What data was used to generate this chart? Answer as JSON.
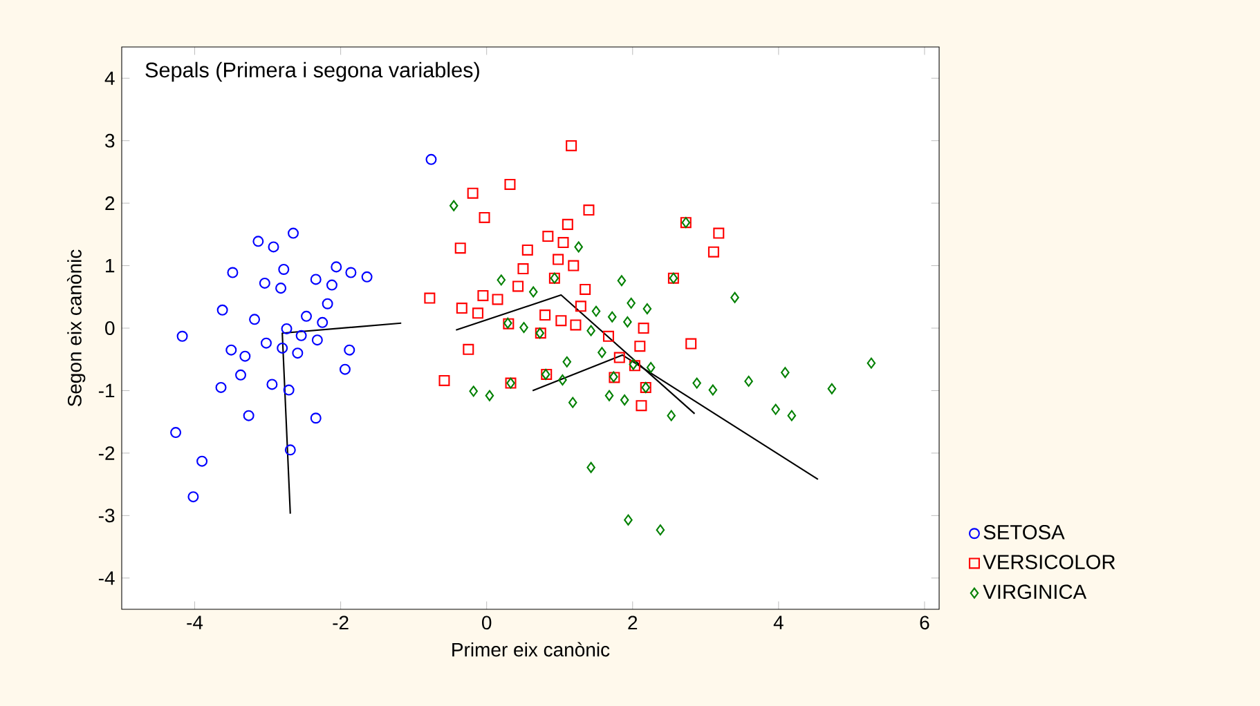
{
  "chart_data": {
    "type": "scatter",
    "title": "Sepals (Primera i segona variables)",
    "xlabel": "Primer eix canònic",
    "ylabel": "Segon eix canònic",
    "xlim": [
      -5,
      6.2
    ],
    "ylim": [
      -4.5,
      4.5
    ],
    "xticks": [
      -4,
      -2,
      0,
      2,
      4,
      6
    ],
    "yticks": [
      -4,
      -3,
      -2,
      -1,
      0,
      1,
      2,
      3,
      4
    ],
    "grid": false,
    "legend": "bottom right",
    "series": [
      {
        "name": "SETOSA",
        "color": "#0000ff",
        "marker": "circle",
        "x": [
          -0.76,
          -2.65,
          -3.13,
          -2.92,
          -3.48,
          -2.78,
          -3.04,
          -2.82,
          -2.06,
          -1.86,
          -1.64,
          -2.34,
          -2.12,
          -2.18,
          -3.62,
          -3.18,
          -2.47,
          -2.25,
          -4.17,
          -2.74,
          -2.54,
          -2.32,
          -3.02,
          -2.8,
          -2.59,
          -3.5,
          -3.31,
          -1.88,
          -1.94,
          -3.37,
          -3.64,
          -2.94,
          -2.71,
          -3.26,
          -2.34,
          -4.26,
          -2.69,
          -3.9,
          -4.02
        ],
        "values": [
          2.7,
          1.52,
          1.39,
          1.3,
          0.89,
          0.94,
          0.72,
          0.64,
          0.98,
          0.89,
          0.82,
          0.78,
          0.69,
          0.39,
          0.29,
          0.14,
          0.19,
          0.09,
          -0.13,
          -0.01,
          -0.12,
          -0.19,
          -0.24,
          -0.32,
          -0.4,
          -0.35,
          -0.45,
          -0.35,
          -0.66,
          -0.75,
          -0.95,
          -0.9,
          -0.99,
          -1.4,
          -1.44,
          -1.67,
          -1.95,
          -2.13,
          -2.7
        ]
      },
      {
        "name": "VERSICOLOR",
        "color": "#ff0000",
        "marker": "square",
        "x": [
          1.16,
          0.32,
          -0.19,
          -0.03,
          1.4,
          1.11,
          -0.36,
          0.84,
          1.05,
          0.56,
          0.98,
          1.19,
          0.5,
          0.93,
          0.43,
          -0.78,
          -0.05,
          0.15,
          1.35,
          -0.34,
          -0.12,
          1.29,
          0.8,
          1.02,
          1.22,
          0.3,
          0.74,
          1.67,
          1.82,
          -0.25,
          -0.58,
          0.33,
          0.82,
          1.75,
          2.73,
          3.18,
          3.11,
          2.56,
          2.15,
          2.1,
          2.8,
          2.03,
          2.18,
          2.12
        ],
        "values": [
          2.92,
          2.3,
          2.16,
          1.77,
          1.89,
          1.66,
          1.28,
          1.47,
          1.37,
          1.25,
          1.1,
          1.0,
          0.95,
          0.8,
          0.67,
          0.48,
          0.52,
          0.46,
          0.62,
          0.32,
          0.24,
          0.35,
          0.21,
          0.12,
          0.05,
          0.07,
          -0.08,
          -0.13,
          -0.47,
          -0.34,
          -0.84,
          -0.88,
          -0.74,
          -0.79,
          1.69,
          1.52,
          1.22,
          0.8,
          0.0,
          -0.29,
          -0.25,
          -0.6,
          -0.95,
          -1.24
        ]
      },
      {
        "name": "VIRGINICA",
        "color": "#008000",
        "marker": "diamond",
        "x": [
          -0.45,
          1.26,
          0.2,
          0.64,
          0.93,
          1.85,
          1.98,
          1.5,
          1.72,
          1.93,
          1.43,
          0.29,
          0.51,
          0.73,
          1.58,
          1.1,
          0.81,
          1.04,
          -0.18,
          0.04,
          0.33,
          1.18,
          1.74,
          1.68,
          1.89,
          1.43,
          1.94,
          2.01,
          2.73,
          2.56,
          2.2,
          3.4,
          2.25,
          2.18,
          2.88,
          3.1,
          3.59,
          4.09,
          5.27,
          4.73,
          3.96,
          4.18,
          2.53,
          2.38
        ],
        "values": [
          1.96,
          1.3,
          0.77,
          0.58,
          0.8,
          0.76,
          0.4,
          0.27,
          0.18,
          0.1,
          -0.04,
          0.08,
          0.01,
          -0.08,
          -0.39,
          -0.54,
          -0.74,
          -0.83,
          -1.01,
          -1.08,
          -0.88,
          -1.19,
          -0.78,
          -1.08,
          -1.15,
          -2.23,
          -3.07,
          -0.58,
          1.69,
          0.8,
          0.31,
          0.49,
          -0.63,
          -0.95,
          -0.88,
          -0.99,
          -0.85,
          -0.71,
          -0.56,
          -0.97,
          -1.3,
          -1.4,
          -1.4,
          -3.23
        ]
      },
      {
        "type": "line",
        "color": "#000000",
        "marker": "none",
        "x": [
          -1.17,
          -2.8,
          -2.69
        ],
        "values": [
          0.08,
          -0.08,
          -2.97
        ]
      },
      {
        "type": "line",
        "color": "#000000",
        "marker": "none",
        "x": [
          -0.42,
          1.02,
          2.85
        ],
        "values": [
          -0.03,
          0.53,
          -1.37
        ]
      },
      {
        "type": "line",
        "color": "#000000",
        "marker": "none",
        "x": [
          0.63,
          1.86,
          4.54
        ],
        "values": [
          -1.0,
          -0.43,
          -2.42
        ]
      }
    ]
  }
}
